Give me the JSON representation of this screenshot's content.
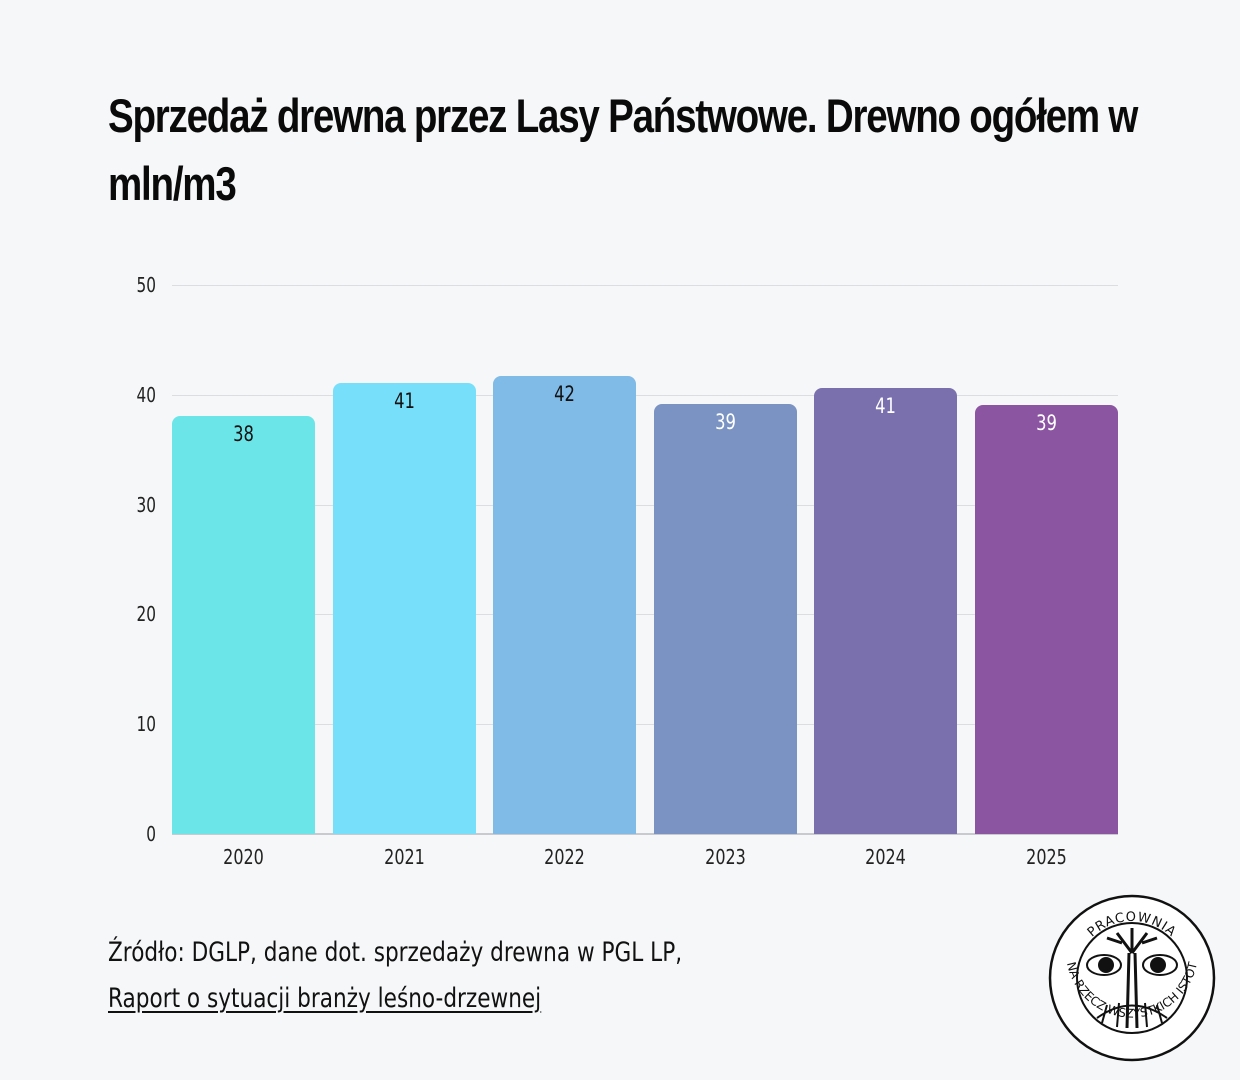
{
  "header": {
    "title": "Sprzedaż drewna przez Lasy Państwowe. Drewno ogółem w mln/m3"
  },
  "chart_data": {
    "type": "bar",
    "title": "Sprzedaż drewna przez Lasy Państwowe. Drewno ogółem w mln/m3",
    "xlabel": "",
    "ylabel": "",
    "categories": [
      "2020",
      "2021",
      "2022",
      "2023",
      "2024",
      "2025"
    ],
    "values": [
      38.1,
      41.1,
      41.7,
      39.2,
      40.6,
      39.1
    ],
    "data_labels": [
      "38",
      "41",
      "42",
      "39",
      "41",
      "39"
    ],
    "colors": [
      "#6ce5e8",
      "#78dffb",
      "#80bbe7",
      "#7a93c2",
      "#7b70ae",
      "#8c55a1"
    ],
    "label_colors": [
      "#111111",
      "#111111",
      "#111111",
      "#ffffff",
      "#ffffff",
      "#ffffff"
    ],
    "ylim": [
      0,
      50
    ],
    "yticks": [
      "0",
      "10",
      "20",
      "30",
      "40",
      "50"
    ],
    "grid": true,
    "legend": "none"
  },
  "footer": {
    "source_prefix": "Źródło: DGLP, dane dot. sprzedaży drewna w PGL LP,",
    "source_link": "Raport o sytuacji branży leśno-drzewnej"
  },
  "logo": {
    "icon": "tree-eyes-logo",
    "ring_text_top": "PRACOWNIA",
    "ring_text_bottom": "NA RZECZ WSZYSTKICH ISTOT"
  }
}
